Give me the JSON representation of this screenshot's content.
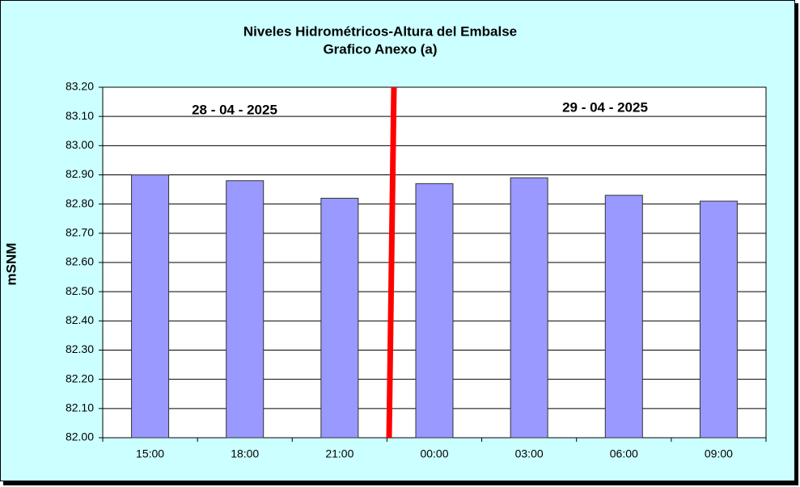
{
  "chart_data": {
    "type": "bar",
    "title": "Niveles Hidrométricos-Altura del Embalse",
    "subtitle": "Grafico Anexo (a)",
    "y_label": "mSNM",
    "annotations": [
      "28 - 04 - 2025",
      "29 - 04 - 2025"
    ],
    "categories": [
      "15:00",
      "18:00",
      "21:00",
      "00:00",
      "03:00",
      "06:00",
      "09:00"
    ],
    "values": [
      82.9,
      82.88,
      82.82,
      82.87,
      82.89,
      82.83,
      82.81
    ],
    "color": "#9999ff",
    "ylim": [
      82.0,
      83.2
    ],
    "yticks": [
      {
        "value": 82.0,
        "label": "82.00"
      },
      {
        "value": 82.1,
        "label": "82.10"
      },
      {
        "value": 82.2,
        "label": "82.20"
      },
      {
        "value": 82.3,
        "label": "82.30"
      },
      {
        "value": 82.4,
        "label": "82.40"
      },
      {
        "value": 82.5,
        "label": "82.50"
      },
      {
        "value": 82.6,
        "label": "82.60"
      },
      {
        "value": 82.7,
        "label": "82.70"
      },
      {
        "value": 82.8,
        "label": "82.80"
      },
      {
        "value": 82.9,
        "label": "82.90"
      },
      {
        "value": 83.0,
        "label": "83.00"
      },
      {
        "value": 83.1,
        "label": "83.10"
      },
      {
        "value": 83.2,
        "label": "83.20"
      }
    ],
    "grid": true
  }
}
